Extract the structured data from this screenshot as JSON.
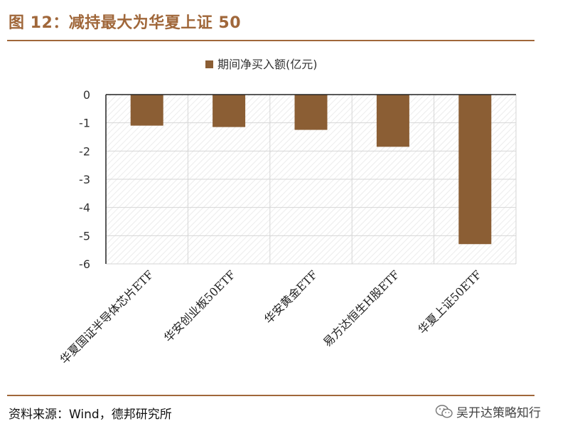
{
  "title": "图 12：减持最大为华夏上证 50",
  "source": "资料来源：Wind，德邦研究所",
  "watermark": "吴开达策略知行",
  "colors": {
    "accent": "#a0673a",
    "bar": "#8b5e34"
  },
  "chart_data": {
    "type": "bar",
    "categories": [
      "华夏国证半导体芯片ETF",
      "华安创业板50ETF",
      "华安黄金ETF",
      "易方达恒生H股ETF",
      "华夏上证50ETF"
    ],
    "series": [
      {
        "name": "期间净买入额(亿元)",
        "values": [
          -1.1,
          -1.15,
          -1.25,
          -1.85,
          -5.3
        ]
      }
    ],
    "ylim": [
      -6,
      0
    ],
    "yticks": [
      "0",
      "-1",
      "-2",
      "-3",
      "-4",
      "-5",
      "-6"
    ],
    "grid": true,
    "legend_position": "top-center"
  }
}
